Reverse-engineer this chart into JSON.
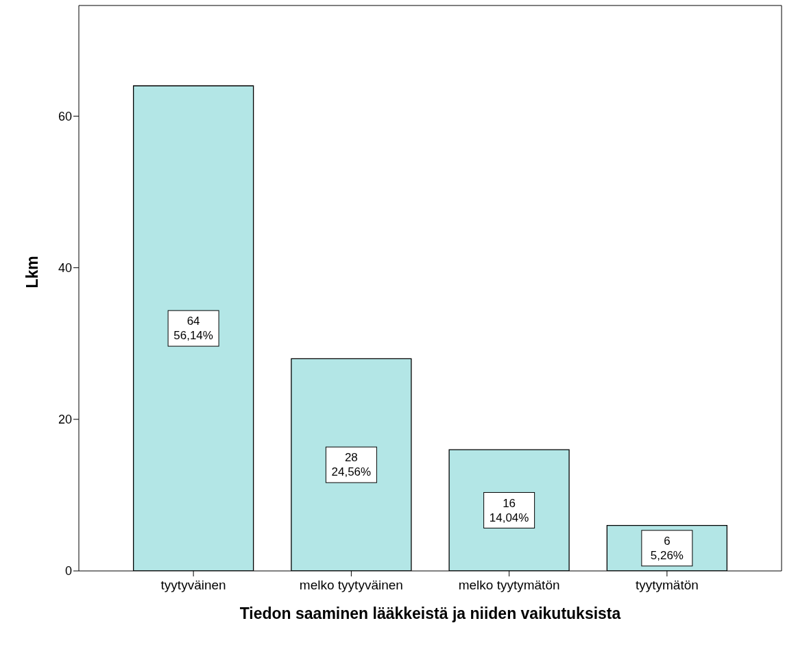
{
  "chart_data": {
    "type": "bar",
    "xlabel": "Tiedon saaminen lääkkeistä ja niiden vaikutuksista",
    "ylabel": "Lkm",
    "categories": [
      "tyytyväinen",
      "melko tyytyväinen",
      "melko tyytymätön",
      "tyytymätön"
    ],
    "values": [
      64,
      28,
      16,
      6
    ],
    "color": "#b3e6e6",
    "value_labels": [
      "64\n56,14%",
      "28\n24,56%",
      "16\n14,04%",
      "6\n5,26%"
    ],
    "ylim": [
      0,
      74.6
    ],
    "yticks": [
      0,
      20,
      40,
      60
    ],
    "grid": false
  }
}
